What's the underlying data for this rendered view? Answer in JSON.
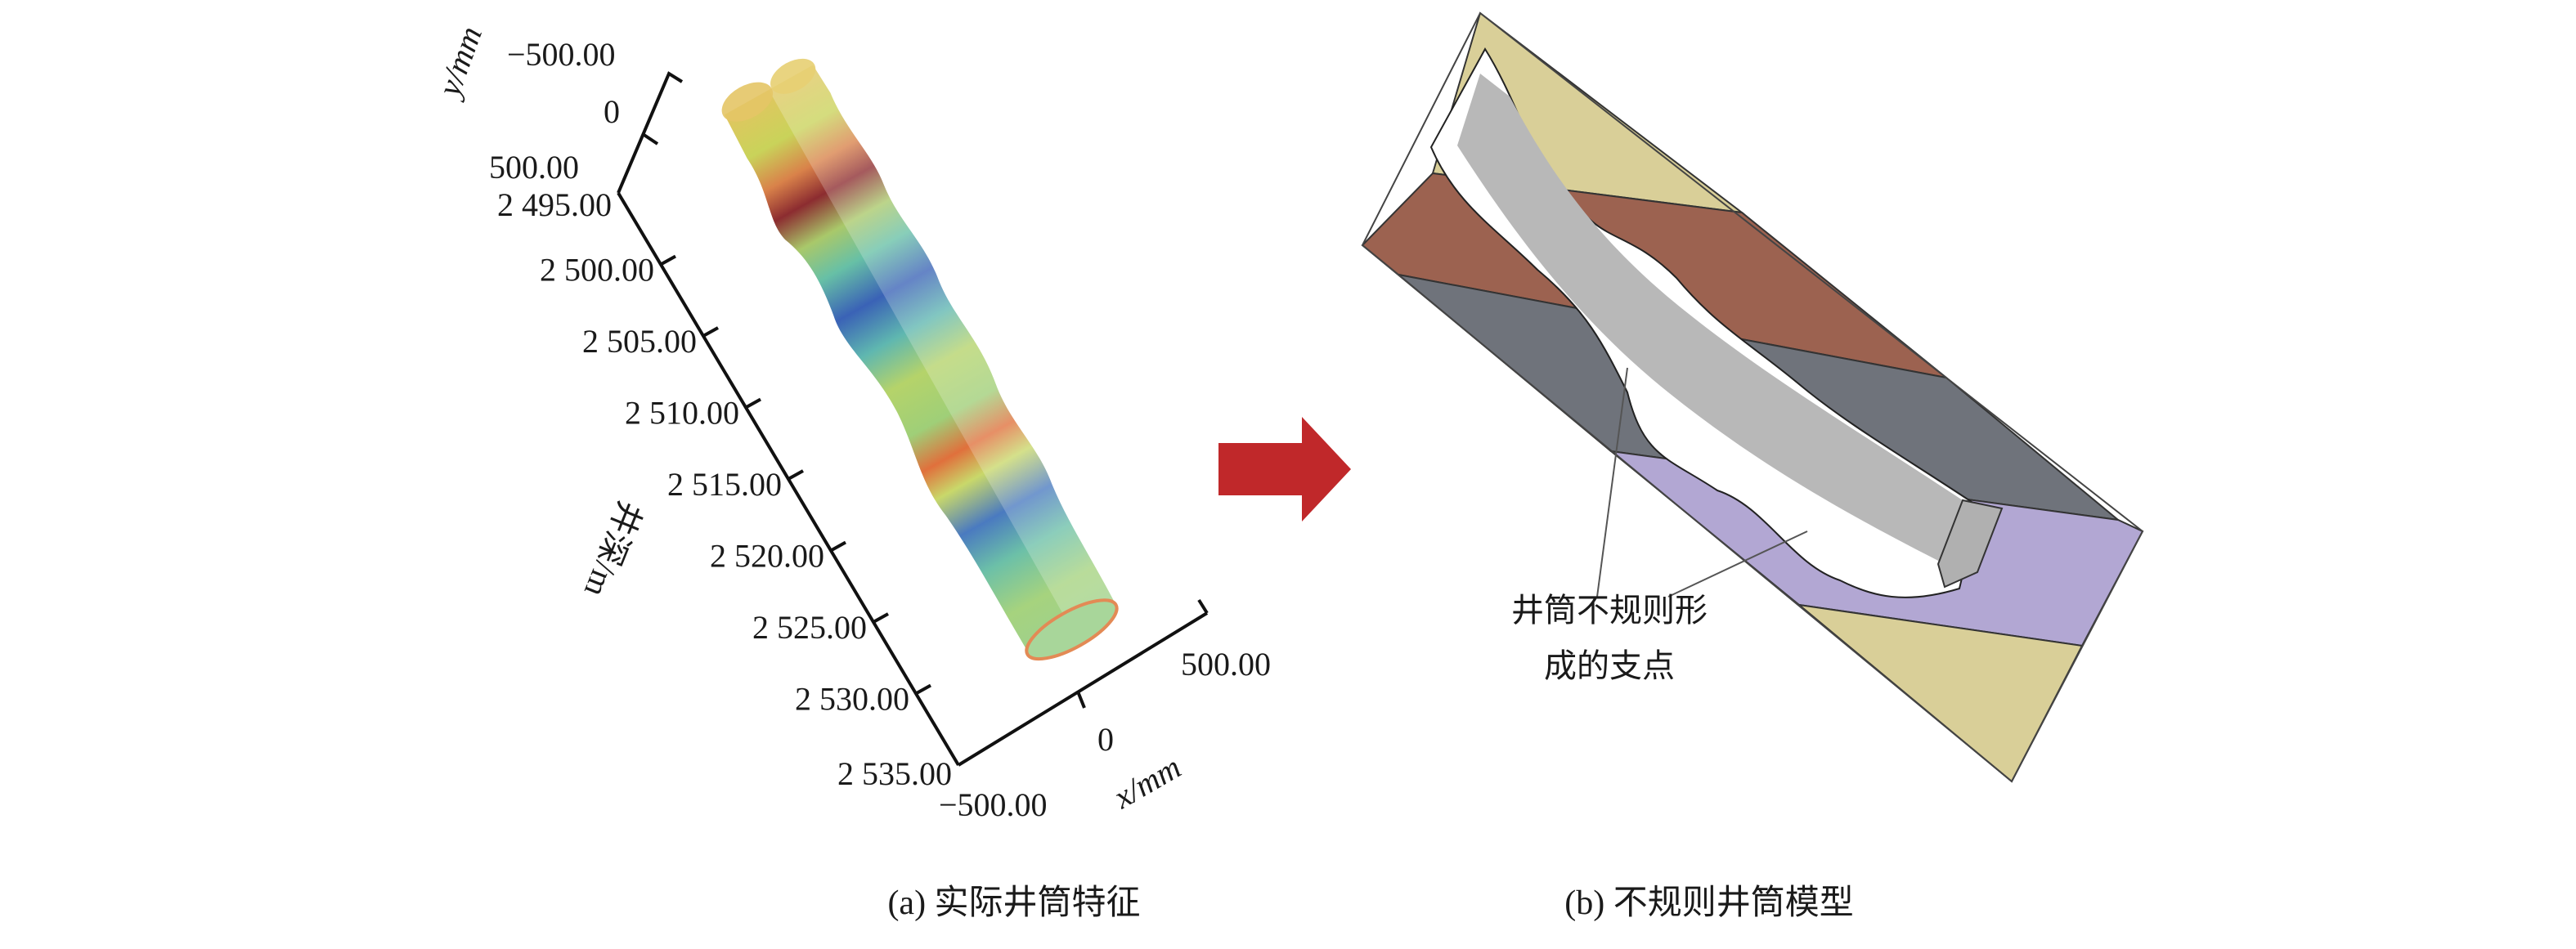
{
  "panel_a": {
    "caption": "(a) 实际井筒特征",
    "y_axis": {
      "label": "y/mm",
      "ticks": [
        "−500.00",
        "0",
        "500.00"
      ]
    },
    "depth_axis": {
      "label": "井深/m",
      "ticks": [
        "2 495.00",
        "2 500.00",
        "2 505.00",
        "2 510.00",
        "2 515.00",
        "2 520.00",
        "2 525.00",
        "2 530.00",
        "2 535.00"
      ]
    },
    "x_axis": {
      "label": "x/mm",
      "ticks": [
        "−500.00",
        "0",
        "500.00"
      ]
    }
  },
  "arrow": {
    "icon": "right-arrow-icon",
    "color": "#c0282a"
  },
  "panel_b": {
    "caption": "(b) 不规则井筒模型",
    "callout": [
      "井筒不规则形",
      "成的支点"
    ],
    "layer_colors": {
      "sand": "#d9cf98",
      "brown": "#9c6250",
      "gray": "#6f737b",
      "purple": "#b2a7d3",
      "wellbore": "#b8b8b8"
    }
  }
}
